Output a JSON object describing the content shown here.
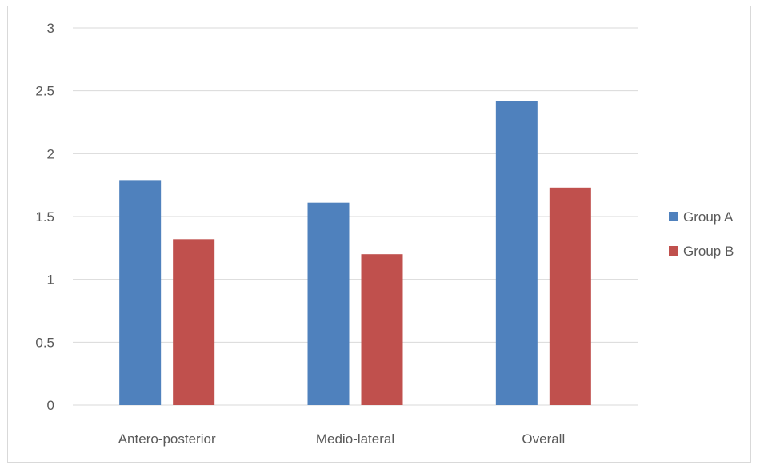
{
  "chart_data": {
    "type": "bar",
    "categories": [
      "Antero-posterior",
      "Medio-lateral",
      "Overall"
    ],
    "series": [
      {
        "name": "Group A",
        "values": [
          1.79,
          1.61,
          2.42
        ],
        "color": "#4F81BD"
      },
      {
        "name": "Group B",
        "values": [
          1.32,
          1.2,
          1.73
        ],
        "color": "#C0504D"
      }
    ],
    "y_ticks": [
      "0",
      "0.5",
      "1",
      "1.5",
      "2",
      "2.5",
      "3"
    ],
    "ylim": [
      0,
      3
    ],
    "grid": true,
    "legend_position": "right"
  }
}
